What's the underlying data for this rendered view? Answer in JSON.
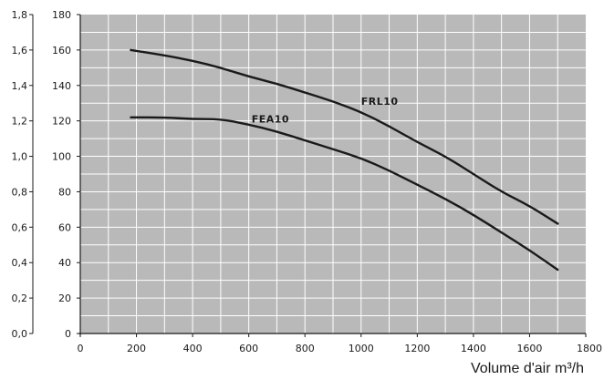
{
  "chart_data": {
    "type": "line",
    "title": "",
    "xlabel": "Volume d'air m³/h",
    "ylabel": "",
    "xlim": [
      0,
      1800
    ],
    "ylim": [
      0,
      180
    ],
    "y2lim": [
      0,
      1.8
    ],
    "grid": true,
    "x_ticks": [
      "0",
      "200",
      "400",
      "600",
      "800",
      "1000",
      "1200",
      "1400",
      "1600",
      "1800"
    ],
    "y_ticks": [
      "0",
      "20",
      "40",
      "60",
      "80",
      "100",
      "120",
      "140",
      "160",
      "180"
    ],
    "y2_ticks": [
      "0,0",
      "0,2",
      "0,4",
      "0,6",
      "0,8",
      "1,0",
      "1,2",
      "1,4",
      "1,6",
      "1,8"
    ],
    "series": [
      {
        "name": "FRL10",
        "color": "#1a1a1a",
        "points": [
          [
            180,
            160
          ],
          [
            300,
            157
          ],
          [
            400,
            154
          ],
          [
            500,
            150
          ],
          [
            600,
            145
          ],
          [
            700,
            141
          ],
          [
            800,
            136
          ],
          [
            900,
            131
          ],
          [
            1000,
            125
          ],
          [
            1100,
            117
          ],
          [
            1200,
            108
          ],
          [
            1300,
            100
          ],
          [
            1400,
            90
          ],
          [
            1500,
            80
          ],
          [
            1600,
            72
          ],
          [
            1700,
            62
          ]
        ]
      },
      {
        "name": "FEA10",
        "color": "#1a1a1a",
        "points": [
          [
            180,
            122
          ],
          [
            300,
            122
          ],
          [
            400,
            121
          ],
          [
            500,
            121
          ],
          [
            600,
            118
          ],
          [
            700,
            114
          ],
          [
            800,
            109
          ],
          [
            900,
            104
          ],
          [
            1000,
            99
          ],
          [
            1100,
            92
          ],
          [
            1200,
            84
          ],
          [
            1300,
            76
          ],
          [
            1400,
            67
          ],
          [
            1500,
            57
          ],
          [
            1600,
            47
          ],
          [
            1700,
            36
          ]
        ]
      }
    ],
    "series_label_positions": [
      {
        "x": 1000,
        "y": 129
      },
      {
        "x": 610,
        "y": 119
      }
    ],
    "plot_bg": "#b9b9b9",
    "grid_color": "#ffffff"
  }
}
